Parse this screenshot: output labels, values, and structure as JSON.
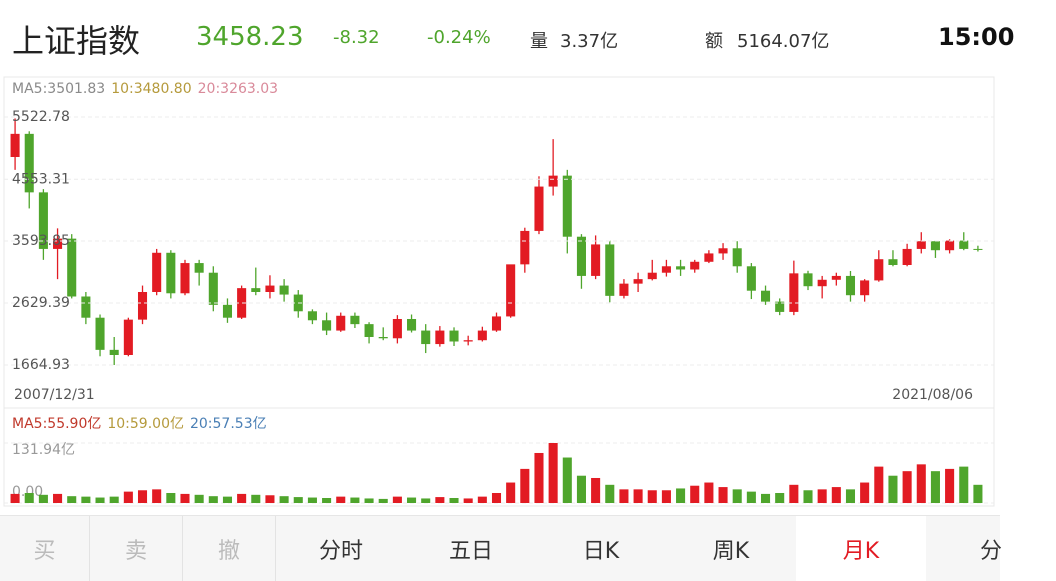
{
  "header": {
    "title": "上证指数",
    "price": "3458.23",
    "change": "-8.32",
    "change_pct": "-0.24%",
    "volume_label": "量",
    "volume": "3.37亿",
    "amount_label": "额",
    "amount": "5164.07亿",
    "time": "15:00"
  },
  "chart_data": [
    {
      "type": "candlestick",
      "legend": [
        {
          "text": "MA5:3501.83",
          "color": "#8a8a8a"
        },
        {
          "text": "10:3480.80",
          "color": "#b59a3c"
        },
        {
          "text": "20:3263.03",
          "color": "#d98a9a"
        }
      ],
      "start_date": "2007/12/31",
      "end_date": "2021/08/06",
      "up_color": "#e21b23",
      "down_color": "#4fa52c",
      "grid": true,
      "ylim": [
        1431,
        5740
      ],
      "yticks": [
        5522.78,
        4553.31,
        3593.85,
        2629.39,
        1664.93
      ],
      "candles": [
        [
          4900,
          5500,
          4700,
          5260
        ],
        [
          5260,
          5300,
          4100,
          4350
        ],
        [
          4350,
          4400,
          3300,
          3470
        ],
        [
          3470,
          3790,
          3000,
          3630
        ],
        [
          3630,
          3700,
          2700,
          2730
        ],
        [
          2730,
          2800,
          2300,
          2400
        ],
        [
          2400,
          2450,
          1800,
          1900
        ],
        [
          1900,
          2100,
          1664,
          1820
        ],
        [
          1820,
          2400,
          1800,
          2370
        ],
        [
          2370,
          2900,
          2300,
          2800
        ],
        [
          2800,
          3470,
          2750,
          3410
        ],
        [
          3410,
          3450,
          2700,
          2780
        ],
        [
          2780,
          3300,
          2750,
          3250
        ],
        [
          3250,
          3300,
          2900,
          3100
        ],
        [
          3100,
          3200,
          2500,
          2600
        ],
        [
          2600,
          2700,
          2320,
          2400
        ],
        [
          2400,
          2900,
          2380,
          2860
        ],
        [
          2860,
          3180,
          2750,
          2800
        ],
        [
          2800,
          3060,
          2700,
          2900
        ],
        [
          2900,
          3000,
          2650,
          2760
        ],
        [
          2760,
          2830,
          2400,
          2500
        ],
        [
          2500,
          2530,
          2300,
          2360
        ],
        [
          2360,
          2480,
          2130,
          2200
        ],
        [
          2200,
          2480,
          2180,
          2430
        ],
        [
          2430,
          2480,
          2240,
          2300
        ],
        [
          2300,
          2330,
          2000,
          2100
        ],
        [
          2100,
          2250,
          2050,
          2080
        ],
        [
          2080,
          2440,
          2000,
          2380
        ],
        [
          2380,
          2450,
          2170,
          2200
        ],
        [
          2200,
          2300,
          1850,
          1990
        ],
        [
          1990,
          2270,
          1950,
          2200
        ],
        [
          2200,
          2250,
          1960,
          2030
        ],
        [
          2030,
          2120,
          1970,
          2050
        ],
        [
          2050,
          2260,
          2030,
          2200
        ],
        [
          2200,
          2480,
          2180,
          2420
        ],
        [
          2420,
          3200,
          2400,
          3230
        ],
        [
          3230,
          3800,
          3100,
          3750
        ],
        [
          3750,
          4600,
          3700,
          4440
        ],
        [
          4440,
          5178,
          4300,
          4610
        ],
        [
          4610,
          4700,
          3400,
          3660
        ],
        [
          3660,
          3700,
          2850,
          3050
        ],
        [
          3050,
          3680,
          3000,
          3540
        ],
        [
          3540,
          3600,
          2640,
          2740
        ],
        [
          2740,
          3000,
          2700,
          2930
        ],
        [
          2930,
          3100,
          2800,
          3000
        ],
        [
          3000,
          3300,
          2980,
          3100
        ],
        [
          3100,
          3300,
          3040,
          3200
        ],
        [
          3200,
          3300,
          3050,
          3150
        ],
        [
          3150,
          3300,
          3100,
          3270
        ],
        [
          3270,
          3450,
          3250,
          3400
        ],
        [
          3400,
          3560,
          3300,
          3480
        ],
        [
          3480,
          3590,
          3100,
          3200
        ],
        [
          3200,
          3250,
          2690,
          2820
        ],
        [
          2820,
          2900,
          2600,
          2650
        ],
        [
          2650,
          2700,
          2440,
          2490
        ],
        [
          2490,
          3288,
          2440,
          3090
        ],
        [
          3090,
          3130,
          2830,
          2890
        ],
        [
          2890,
          3050,
          2700,
          2990
        ],
        [
          2990,
          3100,
          2900,
          3050
        ],
        [
          3050,
          3127,
          2650,
          2750
        ],
        [
          2750,
          3000,
          2650,
          2980
        ],
        [
          2980,
          3450,
          2960,
          3310
        ],
        [
          3310,
          3450,
          3200,
          3220
        ],
        [
          3220,
          3550,
          3200,
          3470
        ],
        [
          3470,
          3730,
          3400,
          3590
        ],
        [
          3590,
          3600,
          3330,
          3450
        ],
        [
          3450,
          3620,
          3400,
          3600
        ],
        [
          3600,
          3730,
          3450,
          3470
        ],
        [
          3470,
          3520,
          3430,
          3458.23
        ]
      ]
    },
    {
      "type": "bar",
      "legend": [
        {
          "text": "MA5:55.90亿",
          "color": "#c0392b"
        },
        {
          "text": "10:59.00亿",
          "color": "#b59a3c"
        },
        {
          "text": "20:57.53亿",
          "color": "#4a7fb5"
        }
      ],
      "ylim": [
        0,
        131.94
      ],
      "yticks": [
        {
          "value": 131.94,
          "label": "131.94亿"
        },
        {
          "value": 0,
          "label": "0.00"
        }
      ],
      "values": [
        20,
        22,
        18,
        20,
        15,
        14,
        12,
        14,
        25,
        28,
        30,
        22,
        20,
        18,
        15,
        14,
        20,
        18,
        17,
        15,
        13,
        12,
        11,
        14,
        12,
        10,
        9,
        14,
        12,
        10,
        13,
        11,
        10,
        14,
        22,
        45,
        75,
        110,
        131.94,
        100,
        60,
        55,
        40,
        30,
        30,
        28,
        28,
        32,
        38,
        45,
        35,
        30,
        25,
        20,
        22,
        40,
        28,
        30,
        35,
        30,
        45,
        80,
        60,
        70,
        85,
        70,
        75,
        80,
        40
      ]
    }
  ],
  "tabs": [
    "买",
    "卖",
    "撤",
    "分时",
    "五日",
    "日K",
    "周K",
    "月K",
    "分"
  ],
  "selected_tab": 7
}
